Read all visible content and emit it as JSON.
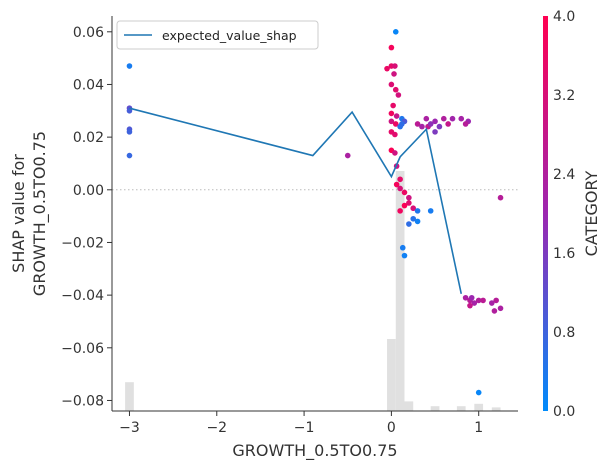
{
  "chart_data": {
    "type": "scatter",
    "title": "",
    "xlabel": "GROWTH_0.5TO0.75",
    "ylabel_lines": [
      "SHAP value for",
      "GROWTH_0.5TO0.75"
    ],
    "xlim": [
      -3.2,
      1.45
    ],
    "ylim": [
      -0.084,
      0.066
    ],
    "x_ticks": [
      -3,
      -2,
      -1,
      0,
      1
    ],
    "x_tick_labels": [
      "−3",
      "−2",
      "−1",
      "0",
      "1"
    ],
    "y_ticks": [
      0.06,
      0.04,
      0.02,
      0.0,
      -0.02,
      -0.04,
      -0.06,
      -0.08
    ],
    "y_tick_labels": [
      "0.06",
      "0.04",
      "0.02",
      "0.00",
      "−0.02",
      "−0.04",
      "−0.06",
      "−0.08"
    ],
    "grid": false,
    "zero_line": true,
    "legend": {
      "placement": "top-left",
      "entries": [
        "expected_value_shap"
      ]
    },
    "colorbar": {
      "label": "CATEGORY",
      "min": 0.0,
      "max": 4.0,
      "ticks": [
        0.0,
        0.8,
        1.6,
        2.4,
        3.2,
        4.0
      ],
      "tick_labels": [
        "0.0",
        "0.8",
        "1.6",
        "2.4",
        "3.2",
        "4.0"
      ],
      "color_low": "#008bfb",
      "color_mid": "#9c27b0",
      "color_high": "#ff0051"
    },
    "histogram": {
      "color": "#e0e0e0",
      "bin_width": 0.1,
      "bins": [
        {
          "x": -3.0,
          "height": 0.12
        },
        {
          "x": 0.0,
          "height": 0.3
        },
        {
          "x": 0.1,
          "height": 1.0
        },
        {
          "x": 0.2,
          "height": 0.04
        },
        {
          "x": 0.5,
          "height": 0.02
        },
        {
          "x": 0.8,
          "height": 0.02
        },
        {
          "x": 1.0,
          "height": 0.03
        },
        {
          "x": 1.2,
          "height": 0.015
        }
      ]
    },
    "line_series": {
      "name": "expected_value_shap",
      "color": "#1f77b4",
      "x": [
        -3.0,
        -0.9,
        -0.45,
        0.0,
        0.1,
        0.4,
        0.8
      ],
      "y": [
        0.031,
        0.013,
        0.0295,
        0.005,
        0.0125,
        0.023,
        -0.0395
      ]
    },
    "scatter_points": [
      [
        -3.0,
        0.047,
        0.3
      ],
      [
        -3.0,
        0.031,
        1.2
      ],
      [
        -3.0,
        0.03,
        0.9
      ],
      [
        -3.0,
        0.023,
        1.0
      ],
      [
        -3.0,
        0.022,
        0.8
      ],
      [
        -3.0,
        0.013,
        0.7
      ],
      [
        -0.5,
        0.013,
        2.3
      ],
      [
        0.05,
        0.06,
        0.1
      ],
      [
        0.0,
        0.054,
        3.8
      ],
      [
        0.0,
        0.047,
        3.5
      ],
      [
        0.04,
        0.047,
        3.2
      ],
      [
        -0.05,
        0.046,
        3.6
      ],
      [
        0.03,
        0.044,
        3.0
      ],
      [
        0.0,
        0.04,
        3.3
      ],
      [
        0.05,
        0.038,
        3.4
      ],
      [
        0.08,
        0.036,
        3.1
      ],
      [
        0.02,
        0.032,
        3.5
      ],
      [
        0.0,
        0.029,
        3.7
      ],
      [
        0.06,
        0.028,
        2.8
      ],
      [
        0.0,
        0.026,
        3.0
      ],
      [
        0.05,
        0.025,
        3.6
      ],
      [
        0.0,
        0.022,
        3.5
      ],
      [
        0.04,
        0.021,
        3.4
      ],
      [
        0.0,
        0.015,
        3.9
      ],
      [
        0.04,
        0.014,
        3.0
      ],
      [
        0.06,
        0.009,
        2.9
      ],
      [
        0.1,
        0.004,
        3.5
      ],
      [
        0.06,
        0.002,
        3.8
      ],
      [
        0.1,
        0.0005,
        3.2
      ],
      [
        0.15,
        -0.001,
        3.6
      ],
      [
        0.2,
        -0.003,
        3.0
      ],
      [
        0.2,
        -0.005,
        3.4
      ],
      [
        0.15,
        -0.006,
        3.9
      ],
      [
        0.25,
        -0.007,
        3.2
      ],
      [
        0.1,
        -0.008,
        3.7
      ],
      [
        0.12,
        0.027,
        0.4
      ],
      [
        0.1,
        0.024,
        0.5
      ],
      [
        0.15,
        0.026,
        1.0
      ],
      [
        0.12,
        0.025,
        0.6
      ],
      [
        0.13,
        -0.022,
        0.3
      ],
      [
        0.15,
        -0.025,
        0.2
      ],
      [
        0.2,
        -0.013,
        0.6
      ],
      [
        0.3,
        -0.008,
        0.4
      ],
      [
        0.45,
        -0.008,
        0.3
      ],
      [
        0.25,
        -0.011,
        0.5
      ],
      [
        0.3,
        -0.012,
        0.2
      ],
      [
        0.3,
        0.025,
        2.6
      ],
      [
        0.35,
        0.024,
        2.2
      ],
      [
        0.42,
        0.024,
        2.7
      ],
      [
        0.5,
        0.026,
        2.0
      ],
      [
        0.6,
        0.027,
        2.4
      ],
      [
        0.7,
        0.027,
        2.1
      ],
      [
        0.65,
        0.025,
        2.8
      ],
      [
        0.5,
        0.022,
        1.6
      ],
      [
        0.45,
        0.025,
        1.8
      ],
      [
        0.55,
        0.024,
        1.6
      ],
      [
        0.8,
        0.027,
        2.2
      ],
      [
        0.88,
        0.026,
        2.0
      ],
      [
        0.85,
        0.025,
        2.5
      ],
      [
        0.4,
        0.027,
        2.3
      ],
      [
        0.85,
        -0.041,
        2.3
      ],
      [
        0.9,
        -0.042,
        2.5
      ],
      [
        0.95,
        -0.043,
        2.2
      ],
      [
        1.0,
        -0.042,
        2.4
      ],
      [
        0.9,
        -0.044,
        2.8
      ],
      [
        1.05,
        -0.042,
        2.6
      ],
      [
        1.15,
        -0.043,
        2.2
      ],
      [
        1.2,
        -0.042,
        2.5
      ],
      [
        1.25,
        -0.045,
        2.3
      ],
      [
        0.92,
        -0.041,
        2.0
      ],
      [
        1.18,
        -0.046,
        2.4
      ],
      [
        1.25,
        -0.003,
        2.5
      ],
      [
        1.0,
        -0.077,
        0.1
      ]
    ]
  }
}
